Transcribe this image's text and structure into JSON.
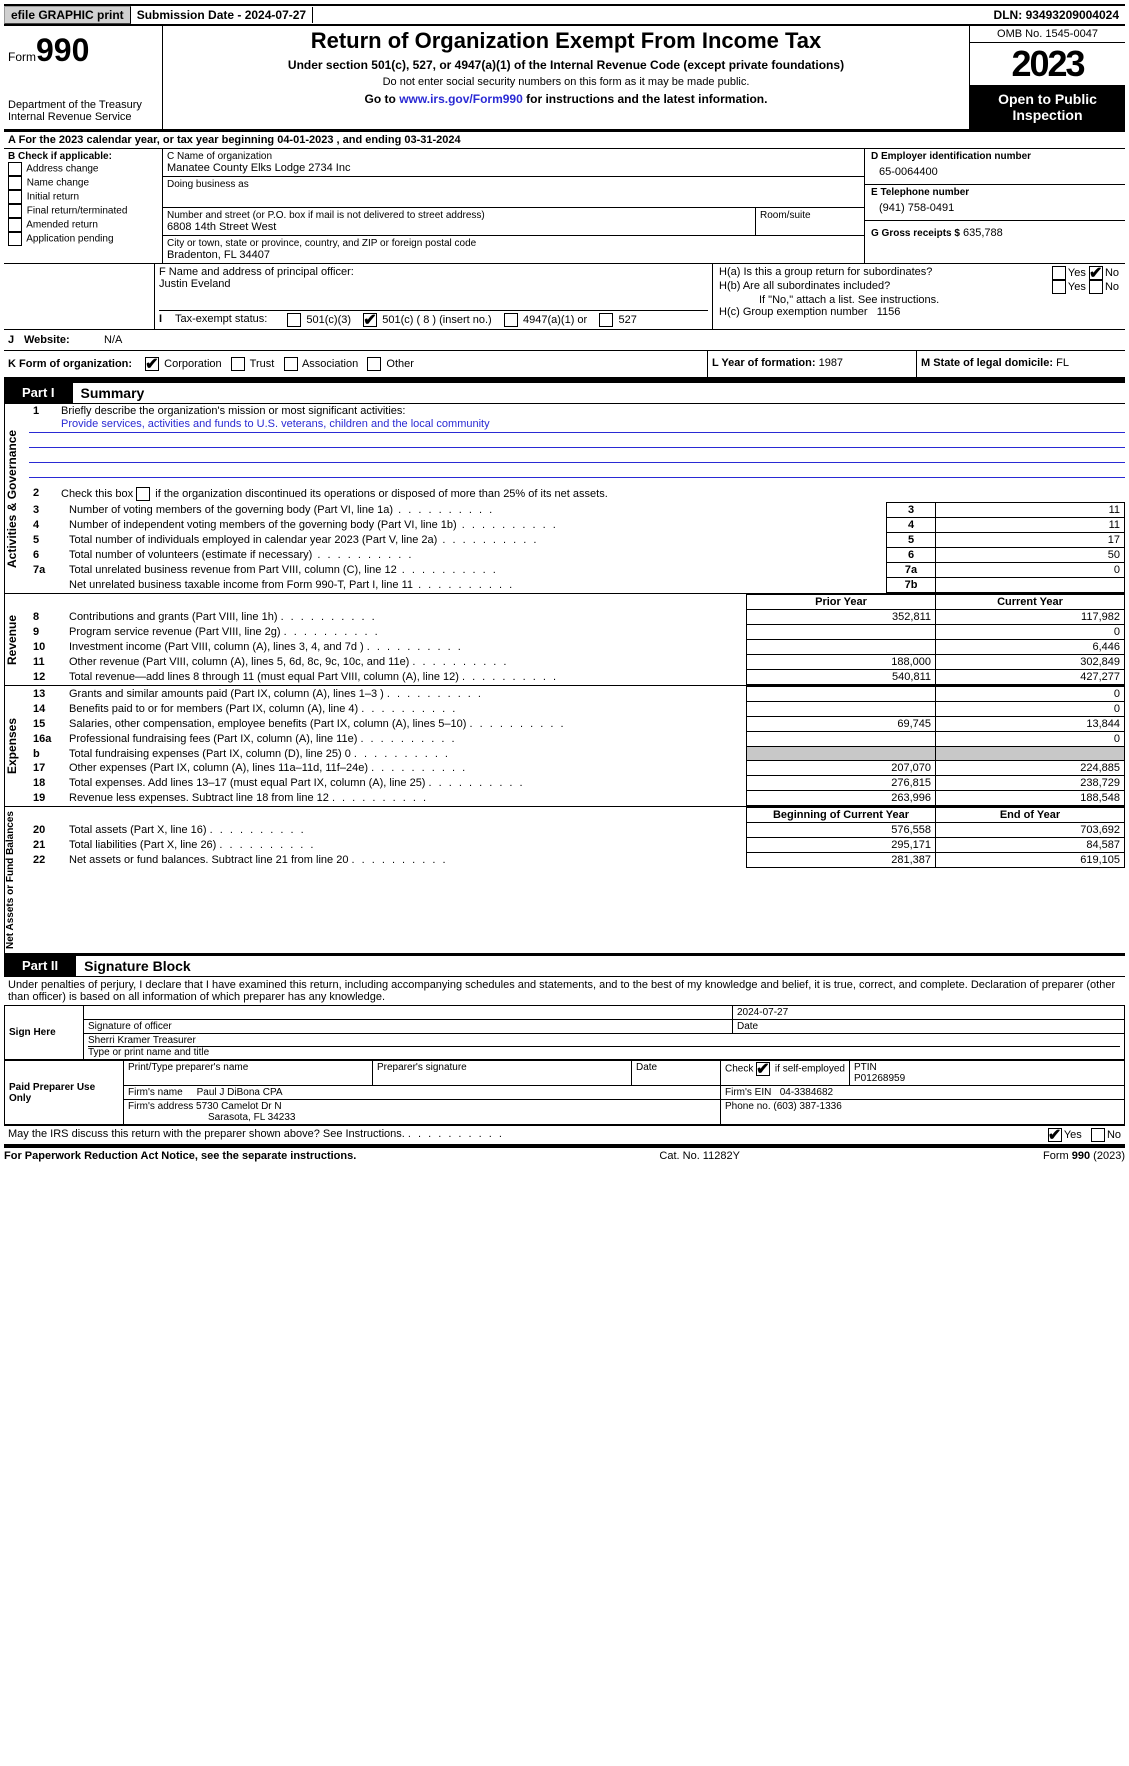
{
  "top": {
    "efile": "efile GRAPHIC print",
    "submission": "Submission Date - 2024-07-27",
    "dln_label": "DLN:",
    "dln": "93493209004024"
  },
  "header": {
    "form_word": "Form",
    "form_num": "990",
    "title": "Return of Organization Exempt From Income Tax",
    "subtitle": "Under section 501(c), 527, or 4947(a)(1) of the Internal Revenue Code (except private foundations)",
    "warn": "Do not enter social security numbers on this form as it may be made public.",
    "goto_pre": "Go to ",
    "goto_link": "www.irs.gov/Form990",
    "goto_post": " for instructions and the latest information.",
    "dept": "Department of the Treasury",
    "irs": "Internal Revenue Service",
    "omb": "OMB No. 1545-0047",
    "year": "2023",
    "open": "Open to Public Inspection"
  },
  "lineA": "For the 2023 calendar year, or tax year beginning 04-01-2023     , and ending 03-31-2024",
  "boxB": {
    "label": "B Check if applicable:",
    "items": [
      "Address change",
      "Name change",
      "Initial return",
      "Final return/terminated",
      "Amended return",
      "Application pending"
    ]
  },
  "boxC": {
    "name_label": "C Name of organization",
    "name": "Manatee County Elks Lodge 2734 Inc",
    "dba_label": "Doing business as",
    "street_label": "Number and street (or P.O. box if mail is not delivered to street address)",
    "street": "6808 14th Street West",
    "room_label": "Room/suite",
    "city_label": "City or town, state or province, country, and ZIP or foreign postal code",
    "city": "Bradenton, FL  34407"
  },
  "boxD": {
    "label": "D Employer identification number",
    "value": "65-0064400"
  },
  "boxE": {
    "label": "E Telephone number",
    "value": "(941) 758-0491"
  },
  "boxG": {
    "label": "G Gross receipts $",
    "value": "635,788"
  },
  "boxF": {
    "label": "F  Name and address of principal officer:",
    "value": "Justin Eveland"
  },
  "boxH": {
    "a": "H(a)  Is this a group return for subordinates?",
    "b": "H(b)  Are all subordinates included?",
    "note": "If \"No,\" attach a list. See instructions.",
    "c": "H(c)  Group exemption number",
    "c_val": "1156",
    "yes": "Yes",
    "no": "No"
  },
  "boxI": {
    "label": "Tax-exempt status:",
    "opts": [
      "501(c)(3)",
      "501(c) ( 8 ) (insert no.)",
      "4947(a)(1) or",
      "527"
    ]
  },
  "boxJ": {
    "label": "Website:",
    "value": "N/A"
  },
  "boxK": {
    "label": "K Form of organization:",
    "opts": [
      "Corporation",
      "Trust",
      "Association",
      "Other"
    ]
  },
  "boxL": {
    "label": "L Year of formation:",
    "value": "1987"
  },
  "boxM": {
    "label": "M State of legal domicile:",
    "value": "FL"
  },
  "part1": {
    "tag": "Part I",
    "title": "Summary",
    "q1": "Briefly describe the organization's mission or most significant activities:",
    "mission": "Provide services, activities and funds to U.S. veterans, children and the local community",
    "q2": "Check this box          if the organization discontinued its operations or disposed of more than 25% of its net assets.",
    "side_ag": "Activities & Governance",
    "side_rev": "Revenue",
    "side_exp": "Expenses",
    "side_net": "Net Assets or Fund Balances",
    "lines_gov": [
      {
        "n": "3",
        "t": "Number of voting members of the governing body (Part VI, line 1a)",
        "box": "3",
        "v": "11"
      },
      {
        "n": "4",
        "t": "Number of independent voting members of the governing body (Part VI, line 1b)",
        "box": "4",
        "v": "11"
      },
      {
        "n": "5",
        "t": "Total number of individuals employed in calendar year 2023 (Part V, line 2a)",
        "box": "5",
        "v": "17"
      },
      {
        "n": "6",
        "t": "Total number of volunteers (estimate if necessary)",
        "box": "6",
        "v": "50"
      },
      {
        "n": "7a",
        "t": "Total unrelated business revenue from Part VIII, column (C), line 12",
        "box": "7a",
        "v": "0"
      },
      {
        "n": "",
        "t": "Net unrelated business taxable income from Form 990-T, Part I, line 11",
        "box": "7b",
        "v": ""
      }
    ],
    "hdr_prior": "Prior Year",
    "hdr_curr": "Current Year",
    "rev": [
      {
        "n": "8",
        "t": "Contributions and grants (Part VIII, line 1h)",
        "p": "352,811",
        "c": "117,982"
      },
      {
        "n": "9",
        "t": "Program service revenue (Part VIII, line 2g)",
        "p": "",
        "c": "0"
      },
      {
        "n": "10",
        "t": "Investment income (Part VIII, column (A), lines 3, 4, and 7d )",
        "p": "",
        "c": "6,446"
      },
      {
        "n": "11",
        "t": "Other revenue (Part VIII, column (A), lines 5, 6d, 8c, 9c, 10c, and 11e)",
        "p": "188,000",
        "c": "302,849"
      },
      {
        "n": "12",
        "t": "Total revenue—add lines 8 through 11 (must equal Part VIII, column (A), line 12)",
        "p": "540,811",
        "c": "427,277"
      }
    ],
    "exp": [
      {
        "n": "13",
        "t": "Grants and similar amounts paid (Part IX, column (A), lines 1–3 )",
        "p": "",
        "c": "0"
      },
      {
        "n": "14",
        "t": "Benefits paid to or for members (Part IX, column (A), line 4)",
        "p": "",
        "c": "0"
      },
      {
        "n": "15",
        "t": "Salaries, other compensation, employee benefits (Part IX, column (A), lines 5–10)",
        "p": "69,745",
        "c": "13,844"
      },
      {
        "n": "16a",
        "t": "Professional fundraising fees (Part IX, column (A), line 11e)",
        "p": "",
        "c": "0"
      },
      {
        "n": "b",
        "t": "Total fundraising expenses (Part IX, column (D), line 25) 0",
        "p": "shade",
        "c": "shade"
      },
      {
        "n": "17",
        "t": "Other expenses (Part IX, column (A), lines 11a–11d, 11f–24e)",
        "p": "207,070",
        "c": "224,885"
      },
      {
        "n": "18",
        "t": "Total expenses. Add lines 13–17 (must equal Part IX, column (A), line 25)",
        "p": "276,815",
        "c": "238,729"
      },
      {
        "n": "19",
        "t": "Revenue less expenses. Subtract line 18 from line 12",
        "p": "263,996",
        "c": "188,548"
      }
    ],
    "hdr_begin": "Beginning of Current Year",
    "hdr_end": "End of Year",
    "net": [
      {
        "n": "20",
        "t": "Total assets (Part X, line 16)",
        "p": "576,558",
        "c": "703,692"
      },
      {
        "n": "21",
        "t": "Total liabilities (Part X, line 26)",
        "p": "295,171",
        "c": "84,587"
      },
      {
        "n": "22",
        "t": "Net assets or fund balances. Subtract line 21 from line 20",
        "p": "281,387",
        "c": "619,105"
      }
    ]
  },
  "part2": {
    "tag": "Part II",
    "title": "Signature Block",
    "perjury": "Under penalties of perjury, I declare that I have examined this return, including accompanying schedules and statements, and to the best of my knowledge and belief, it is true, correct, and complete. Declaration of preparer (other than officer) is based on all information of which preparer has any knowledge.",
    "sign_here": "Sign Here",
    "sig_date": "2024-07-27",
    "sig_officer_lbl": "Signature of officer",
    "sig_name": "Sherri Kramer  Treasurer",
    "sig_name_lbl": "Type or print name and title",
    "date_lbl": "Date",
    "paid": "Paid Preparer Use Only",
    "prep_name_lbl": "Print/Type preparer's name",
    "prep_sig_lbl": "Preparer's signature",
    "self_emp": "if self-employed",
    "check": "Check",
    "ptin_lbl": "PTIN",
    "ptin": "P01268959",
    "firm_name_lbl": "Firm's name",
    "firm_name": "Paul J DiBona CPA",
    "firm_ein_lbl": "Firm's EIN",
    "firm_ein": "04-3384682",
    "firm_addr_lbl": "Firm's address",
    "firm_addr1": "5730 Camelot Dr N",
    "firm_addr2": "Sarasota, FL  34233",
    "phone_lbl": "Phone no.",
    "phone": "(603) 387-1336",
    "discuss": "May the IRS discuss this return with the preparer shown above? See Instructions.",
    "yes": "Yes",
    "no": "No"
  },
  "footer": {
    "pra": "For Paperwork Reduction Act Notice, see the separate instructions.",
    "cat": "Cat. No. 11282Y",
    "form": "Form 990 (2023)"
  }
}
